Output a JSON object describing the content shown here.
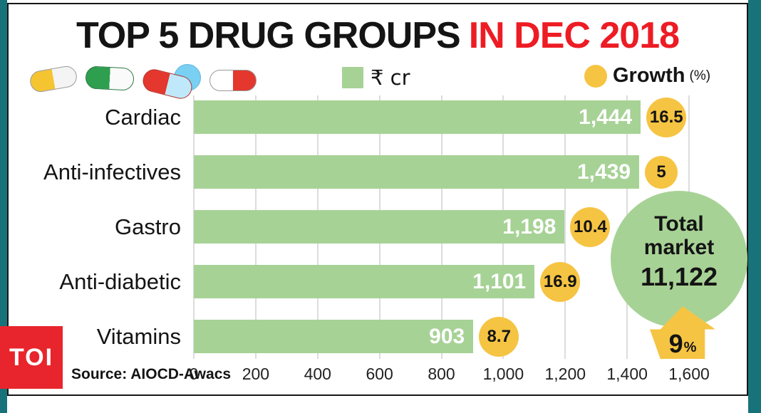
{
  "title": {
    "main": "TOP 5 DRUG GROUPS",
    "highlight": "IN DEC 2018"
  },
  "legend": {
    "bars_label": "₹ cr",
    "growth_label": "Growth",
    "growth_unit": "(%)"
  },
  "chart_data": {
    "type": "bar",
    "orientation": "horizontal",
    "title": "TOP 5 DRUG GROUPS IN DEC 2018",
    "categories": [
      "Cardiac",
      "Anti-infectives",
      "Gastro",
      "Anti-diabetic",
      "Vitamins"
    ],
    "series": [
      {
        "name": "₹ cr",
        "values": [
          1444,
          1439,
          1198,
          1101,
          903
        ],
        "display": [
          "1,444",
          "1,439",
          "1,198",
          "1,101",
          "903"
        ]
      },
      {
        "name": "Growth (%)",
        "values": [
          16.5,
          5,
          10.4,
          16.9,
          8.7
        ],
        "display": [
          "16.5",
          "5",
          "10.4",
          "16.9",
          "8.7"
        ]
      }
    ],
    "xlim": [
      0,
      1600
    ],
    "x_ticks": [
      "0",
      "200",
      "400",
      "600",
      "800",
      "1,000",
      "1,200",
      "1,400",
      "1,600"
    ],
    "x_tick_values": [
      0,
      200,
      400,
      600,
      800,
      1000,
      1200,
      1400,
      1600
    ],
    "grid": true,
    "legend_position": "top"
  },
  "total": {
    "line1": "Total",
    "line2": "market",
    "value": "11,122",
    "growth_value": "9",
    "growth_unit": "%"
  },
  "source": "Source: AIOCD-Awacs",
  "logo": "TOI",
  "colors": {
    "bar_green": "#a7d296",
    "growth_yellow": "#f6c443",
    "accent_red": "#ed1c24",
    "teal_edge": "#177379",
    "logo_red": "#e8252c"
  }
}
